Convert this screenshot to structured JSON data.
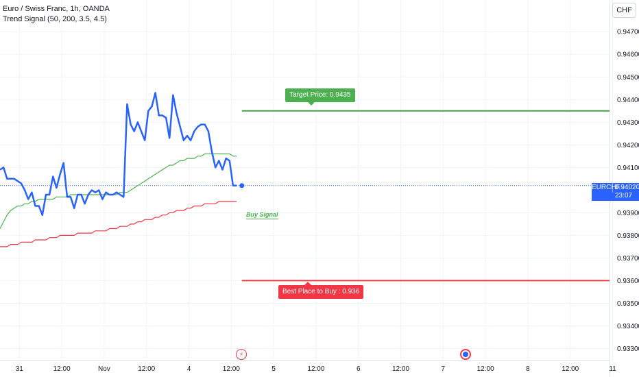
{
  "legend": {
    "symbol_line": "Euro / Swiss Franc, 1h, OANDA",
    "indicator_line": "Trend Signal (50, 200, 3.5, 4.5)"
  },
  "currency_button": "CHF",
  "price_badge": {
    "symbol": "EURCHF",
    "price": "0.94020",
    "countdown": "23:07",
    "color": "#2962ff"
  },
  "annotations": {
    "target_label": "Target Price: 0.9435",
    "target_price": 0.9435,
    "best_buy_label": "Best Place to Buy : 0.936",
    "best_buy_price": 0.936,
    "buy_signal": "Buy Signal"
  },
  "colors": {
    "price_line": "#2962ff",
    "fast_ma": "#4caf50",
    "slow_ma": "#f23645",
    "target_line": "#43a047",
    "buy_line": "#f23645"
  },
  "icons": [
    "lightning-event-icon",
    "globe-event-icon"
  ],
  "chart_data": {
    "type": "line",
    "title": "Euro / Swiss Franc, 1h, OANDA",
    "ylim": [
      0.9325,
      0.9484
    ],
    "y_ticks": [
      "0.94700",
      "0.94600",
      "0.94500",
      "0.94400",
      "0.94300",
      "0.94200",
      "0.94100",
      "0.93900",
      "0.93800",
      "0.93700",
      "0.93600",
      "0.93500",
      "0.93400",
      "0.93300"
    ],
    "x_ticks": [
      "31",
      "12:00",
      "Nov",
      "12:00",
      "4",
      "12:00",
      "5",
      "12:00",
      "6",
      "12:00",
      "7",
      "12:00",
      "8",
      "12:00",
      "11"
    ],
    "x_tick_index": [
      5.5,
      17.5,
      29.5,
      41.5,
      53.5,
      65.5,
      77.5,
      89.5,
      101.5,
      113.5,
      125.5,
      137.5,
      149.5,
      161.5,
      173.5
    ],
    "last_index": 68.5,
    "series": [
      {
        "name": "EURCHF",
        "values": [
          0.9409,
          0.941,
          0.9405,
          0.9405,
          0.9405,
          0.9404,
          0.9403,
          0.94,
          0.9396,
          0.9399,
          0.9393,
          0.9393,
          0.9389,
          0.9398,
          0.9398,
          0.9406,
          0.9401,
          0.9407,
          0.9412,
          0.9397,
          0.9397,
          0.9392,
          0.9398,
          0.9398,
          0.9394,
          0.9398,
          0.94,
          0.9399,
          0.94,
          0.9396,
          0.9399,
          0.9398,
          0.9398,
          0.9399,
          0.9398,
          0.9397,
          0.9438,
          0.9429,
          0.9426,
          0.943,
          0.9426,
          0.9422,
          0.9435,
          0.9437,
          0.9443,
          0.9433,
          0.9433,
          0.9432,
          0.9423,
          0.9442,
          0.9434,
          0.9428,
          0.9422,
          0.9424,
          0.9422,
          0.9426,
          0.9428,
          0.9429,
          0.9429,
          0.9426,
          0.9417,
          0.941,
          0.9413,
          0.9409,
          0.9414,
          0.9413,
          0.9402,
          0.9402
        ]
      },
      {
        "name": "Fast MA",
        "values": [
          0.9383,
          0.9386,
          0.9389,
          0.9391,
          0.9392,
          0.9393,
          0.9393,
          0.9394,
          0.9394,
          0.9395,
          0.9395,
          0.9396,
          0.9396,
          0.9396,
          0.9396,
          0.9396,
          0.9397,
          0.9397,
          0.9397,
          0.9397,
          0.9398,
          0.9398,
          0.9398,
          0.9398,
          0.9398,
          0.9398,
          0.9398,
          0.9398,
          0.9398,
          0.9398,
          0.9398,
          0.9398,
          0.9398,
          0.9398,
          0.9399,
          0.9399,
          0.9399,
          0.94,
          0.9401,
          0.9402,
          0.9403,
          0.9404,
          0.9405,
          0.9406,
          0.9407,
          0.9408,
          0.9409,
          0.941,
          0.9411,
          0.9411,
          0.9412,
          0.9413,
          0.9413,
          0.9414,
          0.9414,
          0.9414,
          0.9415,
          0.9415,
          0.9416,
          0.9416,
          0.9416,
          0.9416,
          0.9416,
          0.9416,
          0.9416,
          0.9416,
          0.9415,
          0.9415
        ]
      },
      {
        "name": "Slow MA",
        "values": [
          0.9375,
          0.9375,
          0.9375,
          0.9376,
          0.9376,
          0.9376,
          0.9377,
          0.9377,
          0.9377,
          0.9377,
          0.9378,
          0.9378,
          0.9378,
          0.9378,
          0.9379,
          0.9379,
          0.9379,
          0.938,
          0.938,
          0.938,
          0.938,
          0.938,
          0.9381,
          0.9381,
          0.9381,
          0.9381,
          0.9381,
          0.9382,
          0.9382,
          0.9382,
          0.9382,
          0.9383,
          0.9383,
          0.9383,
          0.9384,
          0.9384,
          0.9384,
          0.9385,
          0.9385,
          0.9386,
          0.9386,
          0.9387,
          0.9387,
          0.9387,
          0.9388,
          0.9388,
          0.9389,
          0.9389,
          0.939,
          0.939,
          0.9391,
          0.9391,
          0.9391,
          0.9392,
          0.9392,
          0.9393,
          0.9393,
          0.9393,
          0.9394,
          0.9394,
          0.9394,
          0.9394,
          0.9395,
          0.9395,
          0.9395,
          0.9395,
          0.9395,
          0.9395
        ]
      }
    ],
    "horizontal_levels": [
      {
        "name": "Target Price",
        "value": 0.9435,
        "from_index": 68.5
      },
      {
        "name": "Best Place to Buy",
        "value": 0.936,
        "from_index": 68.5
      }
    ],
    "grid": true
  }
}
